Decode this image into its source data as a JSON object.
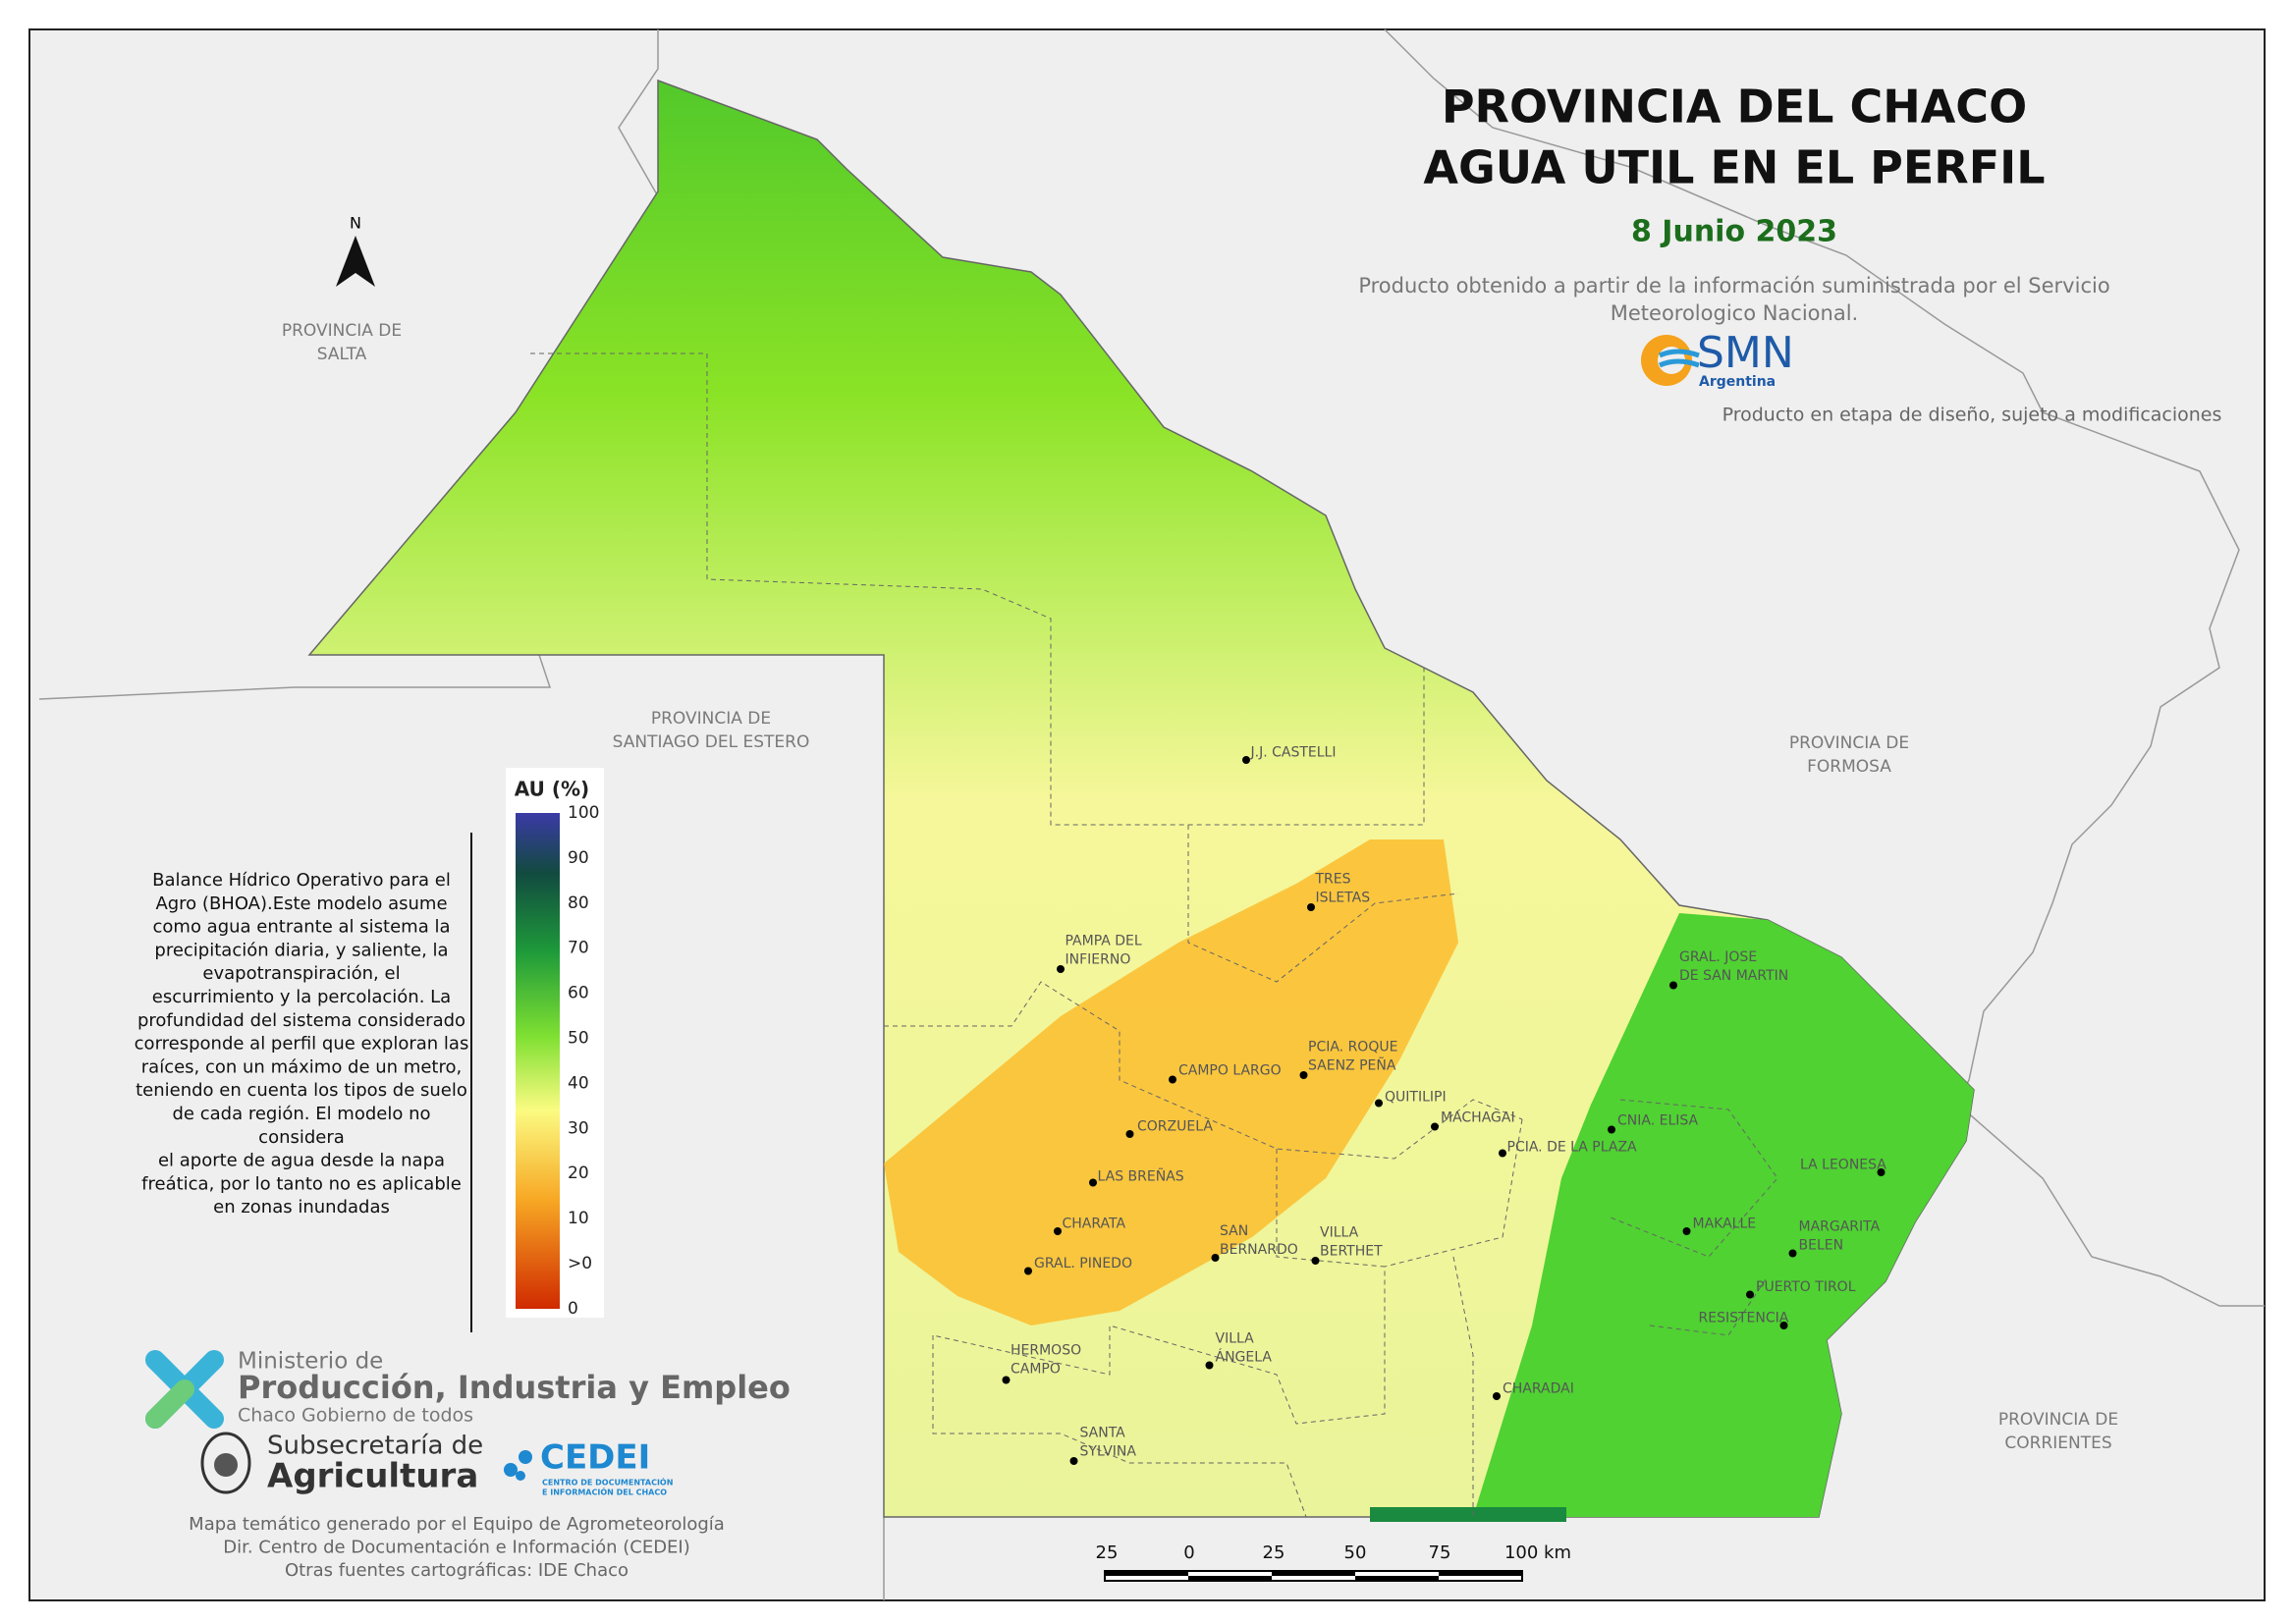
{
  "title": {
    "line1": "PROVINCIA DEL CHACO",
    "line2": "AGUA UTIL EN EL PERFIL",
    "date": "8 Junio 2023"
  },
  "source_note": [
    "Producto obtenido a partir de la información suministrada por el Servicio",
    "Meteorologico Nacional."
  ],
  "smn_logo": {
    "name": "SMN",
    "country": "Argentina"
  },
  "disclaimer": "Producto en etapa de diseño, sujeto a modificaciones",
  "neighbors": [
    [
      "PROVINCIA DE",
      "SALTA"
    ],
    [
      "PROVINCIA DE",
      "SANTIAGO DEL ESTERO"
    ],
    [
      "PROVINCIA DE",
      "FORMOSA"
    ],
    [
      "PROVINCIA DE",
      "CORRIENTES"
    ]
  ],
  "north_arrow": "N",
  "legend": {
    "title": "AU (%)",
    "ticks": [
      100,
      90,
      80,
      70,
      60,
      50,
      40,
      30,
      20,
      10,
      ">0",
      0
    ]
  },
  "description": [
    "Balance Hídrico Operativo para el",
    "Agro (BHOA).Este modelo asume",
    "como agua entrante al sistema la",
    "precipitación diaria, y saliente, la",
    "evapotranspiración, el",
    "escurrimiento y la percolación. La",
    "profundidad del sistema considerado",
    "corresponde al perfil que exploran las",
    "raíces, con un máximo de un metro,",
    "teniendo en cuenta los tipos de suelo",
    "de cada región. El modelo no",
    "considera",
    "el aporte de agua desde la napa",
    "freática, por lo tanto no es aplicable",
    "en zonas inundadas"
  ],
  "cities": [
    [
      "J.J. CASTELLI"
    ],
    [
      "TRES",
      "ISLETAS"
    ],
    [
      "PAMPA DEL",
      "INFIERNO"
    ],
    [
      "CAMPO LARGO"
    ],
    [
      "PCIA. ROQUE",
      "SAENZ PEÑA"
    ],
    [
      "QUITILIPI"
    ],
    [
      "MACHAGAI"
    ],
    [
      "PCIA. DE LA PLAZA"
    ],
    [
      "CORZUELA"
    ],
    [
      "LAS BREÑAS"
    ],
    [
      "CHARATA"
    ],
    [
      "GRAL. PINEDO"
    ],
    [
      "SAN",
      "BERNARDO"
    ],
    [
      "VILLA",
      "BERTHET"
    ],
    [
      "VILLA",
      "ÁNGELA"
    ],
    [
      "HERMOSO",
      "CAMPO"
    ],
    [
      "SANTA",
      "SYLVINA"
    ],
    [
      "CHARADAI"
    ],
    [
      "GRAL. JOSE",
      "DE SAN MARTIN"
    ],
    [
      "CNIA. ELISA"
    ],
    [
      "LA LEONESA"
    ],
    [
      "MAKALLE"
    ],
    [
      "MARGARITA",
      "BELEN"
    ],
    [
      "PUERTO TIROL"
    ],
    [
      "RESISTENCIA"
    ]
  ],
  "scale_bar": {
    "labels": [
      25,
      0,
      25,
      50,
      75,
      "100 km"
    ]
  },
  "ministry": {
    "line1": "Ministerio de",
    "line2": "Producción, Industria y Empleo",
    "line3": "Chaco Gobierno de todos"
  },
  "subsecretaria": {
    "line1": "Subsecretaría de",
    "line2": "Agricultura"
  },
  "cedei": {
    "name": "CEDEI",
    "sub": [
      "CENTRO DE DOCUMENTACIÓN",
      "E INFORMACIÓN DEL CHACO"
    ]
  },
  "footer": [
    "Mapa temático generado por el Equipo de Agrometeorología",
    "Dir. Centro de Documentación e Información (CEDEI)",
    "Otras fuentes cartográficas: IDE Chaco"
  ]
}
